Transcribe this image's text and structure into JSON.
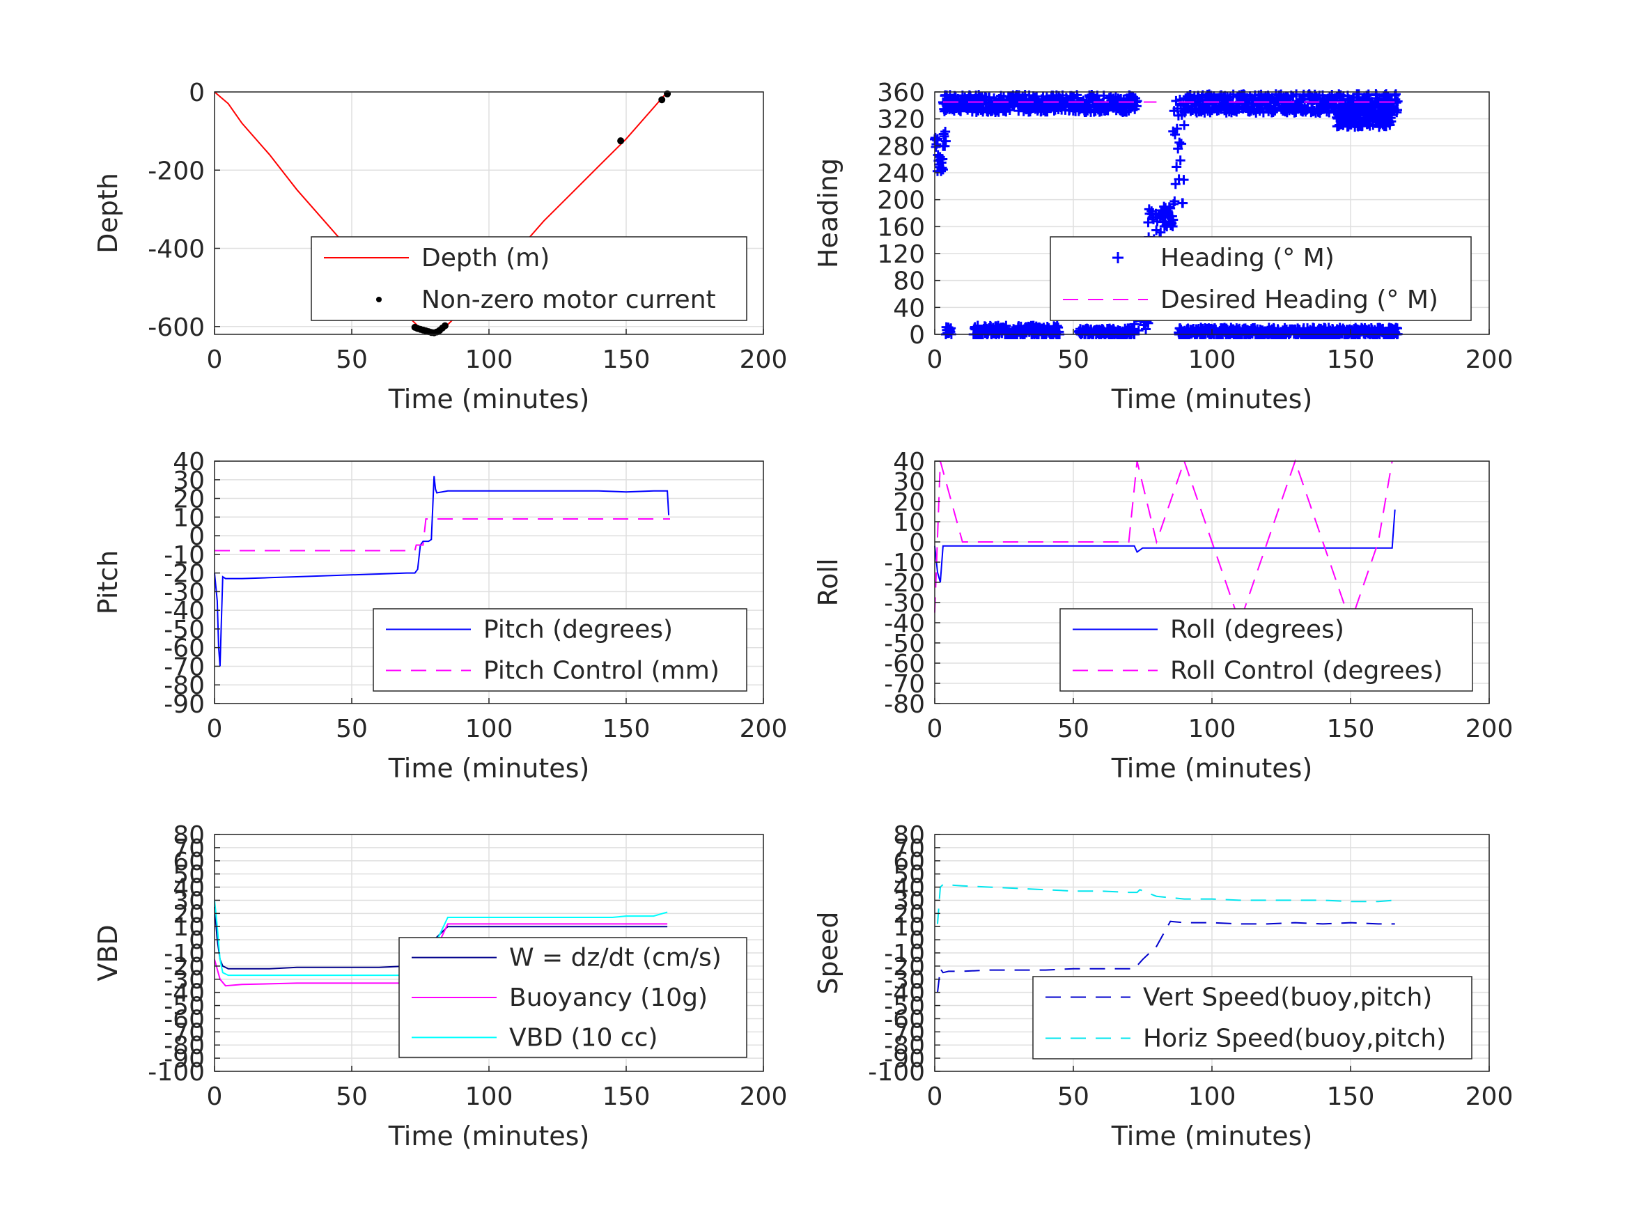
{
  "figure": {
    "panels": [
      {
        "id": "depth",
        "xlabel": "Time (minutes)",
        "ylabel": "Depth",
        "xticks": [
          "0",
          "50",
          "100",
          "150",
          "200"
        ],
        "yticks": [
          "0",
          "-200",
          "-400",
          "-600"
        ],
        "legend": [
          "Depth (m)",
          "Non-zero motor current"
        ]
      },
      {
        "id": "heading",
        "xlabel": "Time (minutes)",
        "ylabel": "Heading",
        "xticks": [
          "0",
          "50",
          "100",
          "150",
          "200"
        ],
        "yticks": [
          "0",
          "40",
          "80",
          "120",
          "160",
          "200",
          "240",
          "280",
          "320",
          "360"
        ],
        "legend": [
          "Heading (° M)",
          "Desired Heading (° M)"
        ]
      },
      {
        "id": "pitch",
        "xlabel": "Time (minutes)",
        "ylabel": "Pitch",
        "xticks": [
          "0",
          "50",
          "100",
          "150",
          "200"
        ],
        "yticks": [
          "40",
          "30",
          "20",
          "10",
          "0",
          "-10",
          "-20",
          "-30",
          "-40",
          "-50",
          "-60",
          "-70",
          "-80",
          "-90"
        ],
        "legend": [
          "Pitch (degrees)",
          "Pitch Control (mm)"
        ]
      },
      {
        "id": "roll",
        "xlabel": "Time (minutes)",
        "ylabel": "Roll",
        "xticks": [
          "0",
          "50",
          "100",
          "150",
          "200"
        ],
        "yticks": [
          "40",
          "30",
          "20",
          "10",
          "0",
          "-10",
          "-20",
          "-30",
          "-40",
          "-50",
          "-60",
          "-70",
          "-80"
        ],
        "legend": [
          "Roll (degrees)",
          "Roll Control (degrees)"
        ]
      },
      {
        "id": "vbd",
        "xlabel": "Time (minutes)",
        "ylabel": "VBD",
        "xticks": [
          "0",
          "50",
          "100",
          "150",
          "200"
        ],
        "yticks": [
          "80",
          "70",
          "60",
          "50",
          "40",
          "30",
          "20",
          "10",
          "0",
          "-10",
          "-20",
          "-30",
          "-40",
          "-50",
          "-60",
          "-70",
          "-80",
          "-90",
          "-100"
        ],
        "legend": [
          "W = dz/dt (cm/s)",
          "Buoyancy (10g)",
          "VBD (10 cc)"
        ]
      },
      {
        "id": "speed",
        "xlabel": "Time (minutes)",
        "ylabel": "Speed",
        "xticks": [
          "0",
          "50",
          "100",
          "150",
          "200"
        ],
        "yticks": [
          "80",
          "70",
          "60",
          "50",
          "40",
          "30",
          "20",
          "10",
          "0",
          "-10",
          "-20",
          "-30",
          "-40",
          "-50",
          "-60",
          "-70",
          "-80",
          "-90",
          "-100"
        ],
        "legend": [
          "Vert Speed(buoy,pitch)",
          "Horiz Speed(buoy,pitch)"
        ]
      }
    ]
  },
  "chart_data": [
    {
      "type": "line",
      "xlabel": "Time (minutes)",
      "ylabel": "Depth",
      "xlim": [
        0,
        200
      ],
      "ylim": [
        -620,
        0
      ],
      "series": [
        {
          "name": "Depth (m)",
          "color": "#ff0000",
          "style": "solid",
          "x": [
            0,
            5,
            10,
            20,
            30,
            40,
            50,
            60,
            70,
            75,
            78,
            80,
            82,
            85,
            90,
            100,
            110,
            120,
            130,
            140,
            150,
            160,
            165
          ],
          "y": [
            0,
            -30,
            -80,
            -160,
            -250,
            -330,
            -410,
            -490,
            -570,
            -605,
            -615,
            -618,
            -612,
            -595,
            -560,
            -485,
            -410,
            -330,
            -260,
            -190,
            -120,
            -40,
            0
          ]
        },
        {
          "name": "Non-zero motor current",
          "color": "#000000",
          "style": "markers",
          "x": [
            73,
            74,
            75,
            76,
            77,
            78,
            79,
            80,
            81,
            82,
            83,
            84,
            148,
            163,
            165
          ],
          "y": [
            -602,
            -605,
            -607,
            -609,
            -611,
            -613,
            -615,
            -616,
            -614,
            -610,
            -604,
            -598,
            -125,
            -20,
            -5
          ]
        }
      ]
    },
    {
      "type": "scatter",
      "xlabel": "Time (minutes)",
      "ylabel": "Heading",
      "xlim": [
        0,
        200
      ],
      "ylim": [
        0,
        360
      ],
      "series": [
        {
          "name": "Heading (° M)",
          "color": "#0000ff",
          "marker": "plus",
          "segments": [
            {
              "x0": 0,
              "x1": 1,
              "y": 290,
              "jitter": 15
            },
            {
              "x0": 1,
              "x1": 3,
              "y": 255,
              "jitter": 15
            },
            {
              "x0": 3,
              "x1": 73,
              "y": 343,
              "jitter": 13
            },
            {
              "x0": 3,
              "x1": 4,
              "y": 300,
              "jitter": 25
            },
            {
              "x0": 4,
              "x1": 6,
              "y": 5,
              "jitter": 6
            },
            {
              "x0": 14,
              "x1": 45,
              "y": 5,
              "jitter": 8
            },
            {
              "x0": 52,
              "x1": 72,
              "y": 3,
              "jitter": 6
            },
            {
              "x0": 72,
              "x1": 77,
              "y": 55,
              "jitter": 50
            },
            {
              "x0": 77,
              "x1": 82,
              "y": 145,
              "jitter": 45
            },
            {
              "x0": 82,
              "x1": 86,
              "y": 175,
              "jitter": 15
            },
            {
              "x0": 86,
              "x1": 90,
              "y": 270,
              "jitter": 80
            },
            {
              "x0": 90,
              "x1": 167,
              "y": 343,
              "jitter": 14
            },
            {
              "x0": 145,
              "x1": 165,
              "y": 320,
              "jitter": 12
            },
            {
              "x0": 88,
              "x1": 167,
              "y": 3,
              "jitter": 7
            }
          ]
        },
        {
          "name": "Desired Heading (° M)",
          "color": "#ff00ff",
          "style": "dashed",
          "segments": [
            {
              "x0": 3,
              "x1": 80,
              "y": 345
            },
            {
              "x0": 88,
              "x1": 168,
              "y": 345
            }
          ]
        }
      ]
    },
    {
      "type": "line",
      "xlabel": "Time (minutes)",
      "ylabel": "Pitch",
      "xlim": [
        0,
        200
      ],
      "ylim": [
        -90,
        40
      ],
      "series": [
        {
          "name": "Pitch (degrees)",
          "color": "#0000ff",
          "style": "solid",
          "x": [
            0,
            1,
            1.5,
            2,
            2.5,
            3,
            4,
            10,
            20,
            30,
            40,
            50,
            60,
            70,
            73,
            74,
            75,
            76,
            77,
            78,
            79,
            80,
            80.5,
            81,
            85,
            90,
            100,
            110,
            120,
            130,
            140,
            150,
            160,
            165,
            165.5
          ],
          "y": [
            -20,
            -35,
            -60,
            -70,
            -45,
            -22,
            -23,
            -23,
            -22.5,
            -22,
            -21.5,
            -21,
            -20.5,
            -20,
            -20,
            -18,
            -5,
            -3,
            -3,
            -3,
            -2,
            32,
            25,
            23,
            24,
            24,
            24,
            24,
            24,
            24,
            24,
            23.5,
            24,
            24,
            11
          ]
        },
        {
          "name": "Pitch Control (mm)",
          "color": "#ff00ff",
          "style": "dashed",
          "x": [
            0,
            73,
            73.5,
            76,
            77,
            166
          ],
          "y": [
            -8,
            -8,
            -5,
            -5,
            9,
            9
          ]
        }
      ]
    },
    {
      "type": "line",
      "xlabel": "Time (minutes)",
      "ylabel": "Roll",
      "xlim": [
        0,
        200
      ],
      "ylim": [
        -80,
        40
      ],
      "series": [
        {
          "name": "Roll (degrees)",
          "color": "#0000ff",
          "style": "solid",
          "x": [
            0,
            1,
            2,
            3,
            4,
            10,
            20,
            30,
            40,
            50,
            60,
            70,
            72,
            73,
            75,
            80,
            90,
            100,
            102,
            110,
            120,
            130,
            140,
            150,
            160,
            165,
            166
          ],
          "y": [
            -2,
            -15,
            -20,
            -2,
            -2,
            -2,
            -2,
            -2,
            -2,
            -2,
            -2,
            -2,
            -2,
            -5,
            -3,
            -3,
            -3,
            -3,
            -3,
            -3,
            -3,
            -3,
            -3,
            -3,
            -3,
            -3,
            16
          ]
        },
        {
          "name": "Roll Control (degrees)",
          "color": "#ff00ff",
          "style": "dashed",
          "x": [
            0,
            2,
            4,
            10,
            20,
            30,
            40,
            50,
            60,
            70,
            73,
            80,
            90,
            100,
            110,
            120,
            130,
            140,
            150,
            160,
            165
          ],
          "y": [
            -35,
            40,
            30,
            0,
            0,
            0,
            0,
            0,
            0,
            0,
            40,
            0,
            40,
            0,
            -40,
            0,
            40,
            0,
            -40,
            0,
            40
          ]
        }
      ]
    },
    {
      "type": "line",
      "xlabel": "Time (minutes)",
      "ylabel": "VBD",
      "xlim": [
        0,
        200
      ],
      "ylim": [
        -100,
        80
      ],
      "series": [
        {
          "name": "W = dz/dt (cm/s)",
          "color": "#00008b",
          "style": "solid",
          "x": [
            0,
            1,
            2,
            3,
            5,
            10,
            20,
            30,
            40,
            50,
            60,
            70,
            73,
            75,
            80,
            85,
            90,
            100,
            110,
            120,
            130,
            140,
            150,
            160,
            165
          ],
          "y": [
            25,
            0,
            -15,
            -20,
            -22,
            -22,
            -22,
            -21,
            -21,
            -21,
            -21,
            -20,
            -20,
            -15,
            0,
            10,
            10,
            10,
            10,
            10,
            10,
            10,
            10,
            10,
            10
          ]
        },
        {
          "name": "Buoyancy (10g)",
          "color": "#ff00ff",
          "style": "solid",
          "x": [
            0,
            2,
            4,
            10,
            30,
            50,
            70,
            73,
            80,
            85,
            90,
            120,
            150,
            165
          ],
          "y": [
            -15,
            -30,
            -35,
            -34,
            -33,
            -33,
            -33,
            -32,
            -10,
            12,
            12,
            12,
            12,
            12
          ]
        },
        {
          "name": "VBD (10 cc)",
          "color": "#00ffff",
          "style": "solid",
          "x": [
            0,
            1,
            2,
            3,
            5,
            10,
            30,
            50,
            70,
            73,
            80,
            85,
            90,
            120,
            145,
            150,
            160,
            165
          ],
          "y": [
            30,
            10,
            -15,
            -25,
            -27,
            -27,
            -27,
            -27,
            -27,
            -26,
            -5,
            17,
            17,
            17,
            17,
            18,
            18,
            21
          ]
        }
      ]
    },
    {
      "type": "line",
      "xlabel": "Time (minutes)",
      "ylabel": "Speed",
      "xlim": [
        0,
        200
      ],
      "ylim": [
        -100,
        80
      ],
      "series": [
        {
          "name": "Vert Speed(buoy,pitch)",
          "color": "#0000cd",
          "style": "dashed",
          "x": [
            1,
            2,
            3,
            5,
            10,
            20,
            30,
            40,
            50,
            60,
            70,
            72,
            75,
            80,
            85,
            90,
            100,
            110,
            120,
            130,
            140,
            150,
            160,
            166
          ],
          "y": [
            -40,
            -22,
            -25,
            -24,
            -24,
            -23,
            -23,
            -23,
            -22,
            -22,
            -22,
            -22,
            -15,
            -5,
            14,
            13,
            13,
            12,
            12,
            13,
            12,
            13,
            12,
            12
          ]
        },
        {
          "name": "Horiz Speed(buoy,pitch)",
          "color": "#00e5ee",
          "style": "dashed",
          "x": [
            1,
            2,
            3,
            10,
            20,
            30,
            40,
            50,
            60,
            70,
            73,
            74,
            80,
            90,
            100,
            110,
            120,
            130,
            140,
            150,
            160,
            166
          ],
          "y": [
            12,
            40,
            42,
            41,
            40,
            39,
            38,
            37,
            37,
            36,
            36,
            38,
            33,
            31,
            31,
            30,
            30,
            30,
            30,
            29,
            29,
            30
          ]
        }
      ]
    }
  ]
}
